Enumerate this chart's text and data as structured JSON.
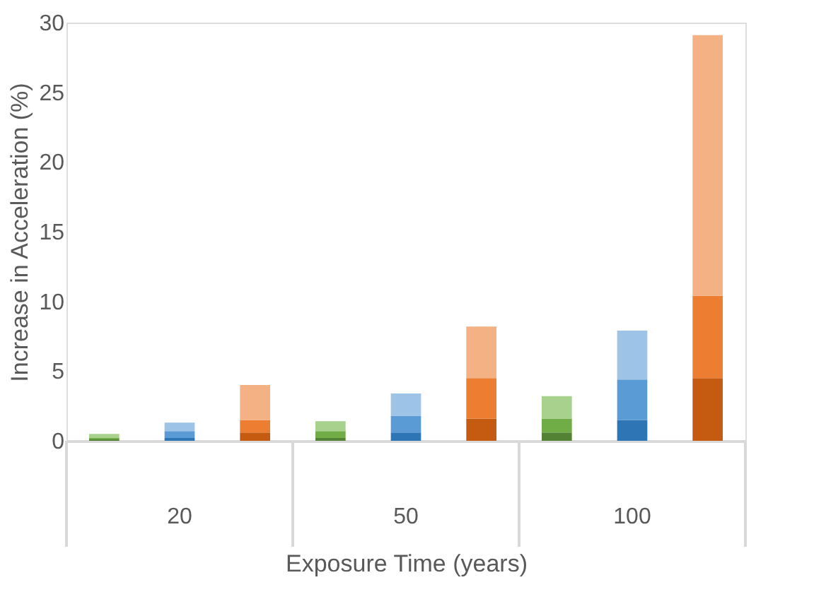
{
  "chart_data": {
    "type": "bar",
    "stacked": true,
    "xlabel": "Exposure Time (years)",
    "ylabel": "Increase in Acceleration (%)",
    "categories": [
      null,
      "20",
      null,
      null,
      "50",
      null,
      null,
      "100",
      null
    ],
    "series": [
      {
        "colors": [
          "#548235",
          "#2e75b6",
          "#c55a11",
          "#548235",
          "#2e75b6",
          "#c55a11",
          "#548235",
          "#2e75b6",
          "#c55a11"
        ],
        "values": [
          0.1,
          0.2,
          0.6,
          0.2,
          0.6,
          1.6,
          0.6,
          1.5,
          4.5
        ]
      },
      {
        "colors": [
          "#70ad47",
          "#5b9bd5",
          "#ed7d31",
          "#70ad47",
          "#5b9bd5",
          "#ed7d31",
          "#70ad47",
          "#5b9bd5",
          "#ed7d31"
        ],
        "values": [
          0.1,
          0.5,
          0.9,
          0.5,
          1.2,
          2.9,
          1.0,
          2.9,
          5.9
        ]
      },
      {
        "colors": [
          "#a9d18e",
          "#9dc3e6",
          "#f4b183",
          "#a9d18e",
          "#9dc3e6",
          "#f4b183",
          "#a9d18e",
          "#9dc3e6",
          "#f4b183"
        ],
        "values": [
          0.3,
          0.6,
          2.5,
          0.7,
          1.6,
          3.7,
          1.6,
          3.5,
          18.7
        ]
      }
    ],
    "ylim": [
      0,
      30
    ],
    "yticks": [
      0,
      5,
      10,
      15,
      20,
      25,
      30
    ],
    "grid": false,
    "legend": false
  }
}
